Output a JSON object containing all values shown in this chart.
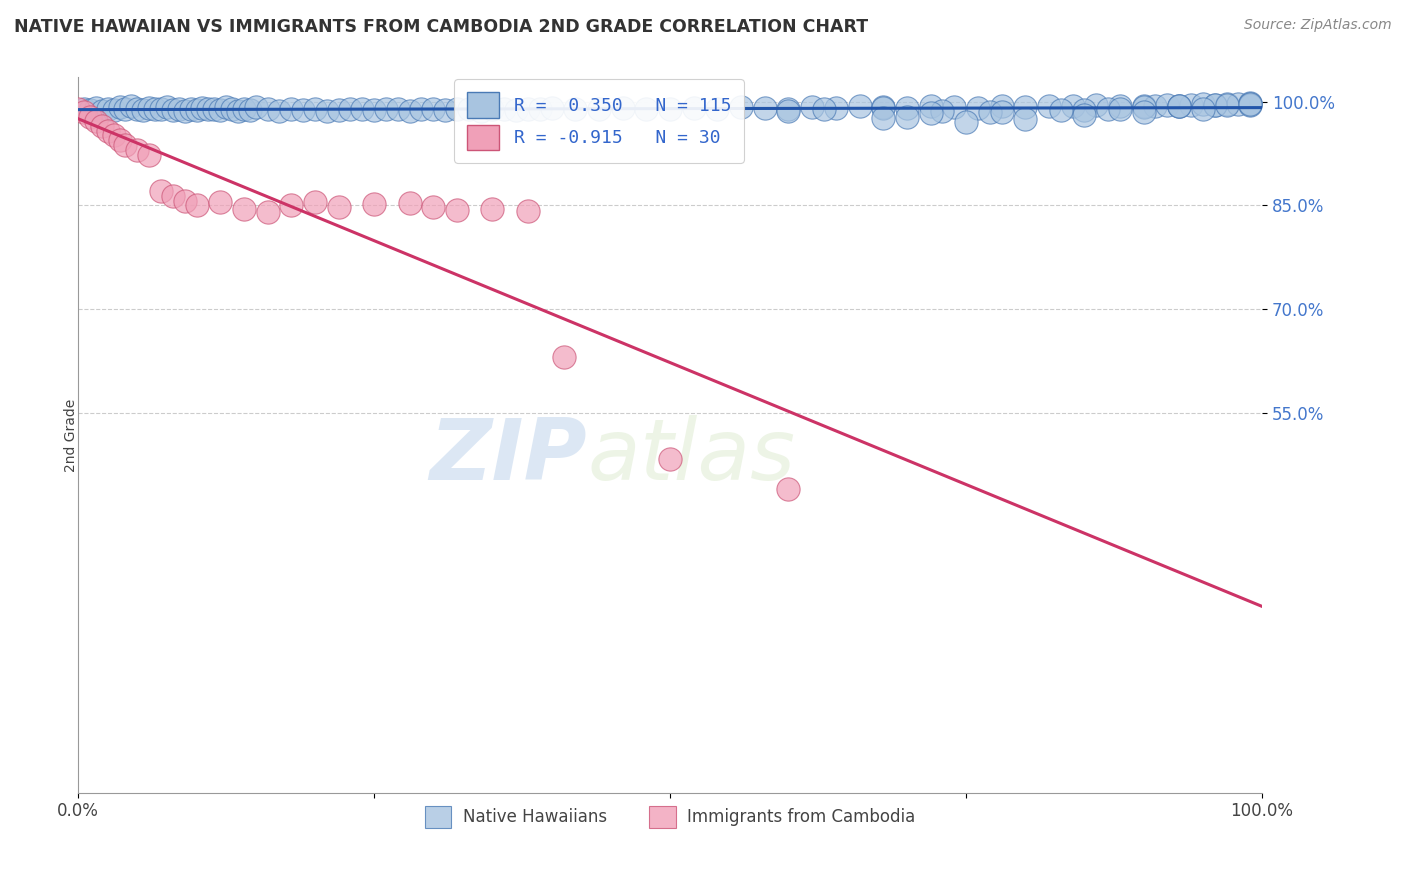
{
  "title": "NATIVE HAWAIIAN VS IMMIGRANTS FROM CAMBODIA 2ND GRADE CORRELATION CHART",
  "source": "Source: ZipAtlas.com",
  "ylabel": "2nd Grade",
  "xlim": [
    0,
    1
  ],
  "ylim": [
    0,
    1
  ],
  "ytick_positions": [
    0.55,
    0.7,
    0.85,
    1.0
  ],
  "ytick_labels": [
    "55.0%",
    "70.0%",
    "85.0%",
    "100.0%"
  ],
  "blue_color": "#a8c4e0",
  "blue_edge_color": "#4a7ab5",
  "blue_line_color": "#2255aa",
  "pink_color": "#f0a0b8",
  "pink_edge_color": "#cc5577",
  "pink_line_color": "#cc3366",
  "legend_label_blue": "Native Hawaiians",
  "legend_label_pink": "Immigrants from Cambodia",
  "watermark_zip": "ZIP",
  "watermark_atlas": "atlas",
  "blue_R": 0.35,
  "blue_N": 115,
  "pink_R": -0.915,
  "pink_N": 30,
  "blue_x": [
    0.005,
    0.01,
    0.015,
    0.02,
    0.025,
    0.03,
    0.035,
    0.04,
    0.045,
    0.05,
    0.055,
    0.06,
    0.065,
    0.07,
    0.075,
    0.08,
    0.085,
    0.09,
    0.095,
    0.1,
    0.105,
    0.11,
    0.115,
    0.12,
    0.125,
    0.13,
    0.135,
    0.14,
    0.145,
    0.15,
    0.16,
    0.17,
    0.18,
    0.19,
    0.2,
    0.21,
    0.22,
    0.23,
    0.24,
    0.25,
    0.26,
    0.27,
    0.28,
    0.29,
    0.3,
    0.31,
    0.32,
    0.33,
    0.34,
    0.35,
    0.36,
    0.37,
    0.38,
    0.39,
    0.4,
    0.42,
    0.44,
    0.46,
    0.48,
    0.5,
    0.52,
    0.54,
    0.56,
    0.58,
    0.6,
    0.62,
    0.64,
    0.66,
    0.68,
    0.7,
    0.72,
    0.74,
    0.76,
    0.78,
    0.8,
    0.82,
    0.84,
    0.86,
    0.88,
    0.9,
    0.91,
    0.92,
    0.93,
    0.94,
    0.95,
    0.96,
    0.97,
    0.98,
    0.99,
    0.6,
    0.63,
    0.68,
    0.73,
    0.77,
    0.85,
    0.87,
    0.9,
    0.93,
    0.96,
    0.99,
    0.7,
    0.75,
    0.8,
    0.85,
    0.9,
    0.95,
    0.99,
    0.72,
    0.78,
    0.83,
    0.88,
    0.93,
    0.97,
    0.99,
    0.68
  ],
  "blue_y": [
    0.99,
    0.988,
    0.991,
    0.987,
    0.99,
    0.988,
    0.992,
    0.989,
    0.993,
    0.99,
    0.988,
    0.991,
    0.989,
    0.99,
    0.992,
    0.988,
    0.99,
    0.987,
    0.989,
    0.988,
    0.991,
    0.989,
    0.99,
    0.988,
    0.992,
    0.989,
    0.987,
    0.99,
    0.988,
    0.992,
    0.989,
    0.987,
    0.99,
    0.988,
    0.989,
    0.987,
    0.988,
    0.99,
    0.989,
    0.988,
    0.99,
    0.989,
    0.987,
    0.99,
    0.989,
    0.988,
    0.99,
    0.989,
    0.987,
    0.99,
    0.989,
    0.988,
    0.99,
    0.989,
    0.991,
    0.99,
    0.989,
    0.991,
    0.99,
    0.989,
    0.991,
    0.99,
    0.992,
    0.991,
    0.99,
    0.992,
    0.991,
    0.993,
    0.992,
    0.991,
    0.993,
    0.992,
    0.991,
    0.993,
    0.992,
    0.994,
    0.993,
    0.995,
    0.994,
    0.993,
    0.994,
    0.995,
    0.994,
    0.995,
    0.996,
    0.995,
    0.996,
    0.997,
    0.998,
    0.987,
    0.989,
    0.991,
    0.986,
    0.985,
    0.988,
    0.99,
    0.992,
    0.994,
    0.995,
    0.997,
    0.978,
    0.97,
    0.975,
    0.98,
    0.985,
    0.99,
    0.995,
    0.983,
    0.985,
    0.988,
    0.99,
    0.993,
    0.995,
    0.997,
    0.976
  ],
  "pink_x": [
    0.0,
    0.005,
    0.01,
    0.015,
    0.02,
    0.025,
    0.03,
    0.035,
    0.04,
    0.05,
    0.06,
    0.07,
    0.08,
    0.09,
    0.1,
    0.12,
    0.14,
    0.16,
    0.18,
    0.2,
    0.22,
    0.25,
    0.28,
    0.3,
    0.32,
    0.35,
    0.38,
    0.41,
    0.5,
    0.6
  ],
  "pink_y": [
    0.99,
    0.985,
    0.978,
    0.972,
    0.965,
    0.958,
    0.951,
    0.944,
    0.937,
    0.93,
    0.923,
    0.87,
    0.863,
    0.856,
    0.85,
    0.855,
    0.845,
    0.84,
    0.85,
    0.855,
    0.848,
    0.852,
    0.853,
    0.847,
    0.843,
    0.845,
    0.842,
    0.63,
    0.483,
    0.44
  ]
}
